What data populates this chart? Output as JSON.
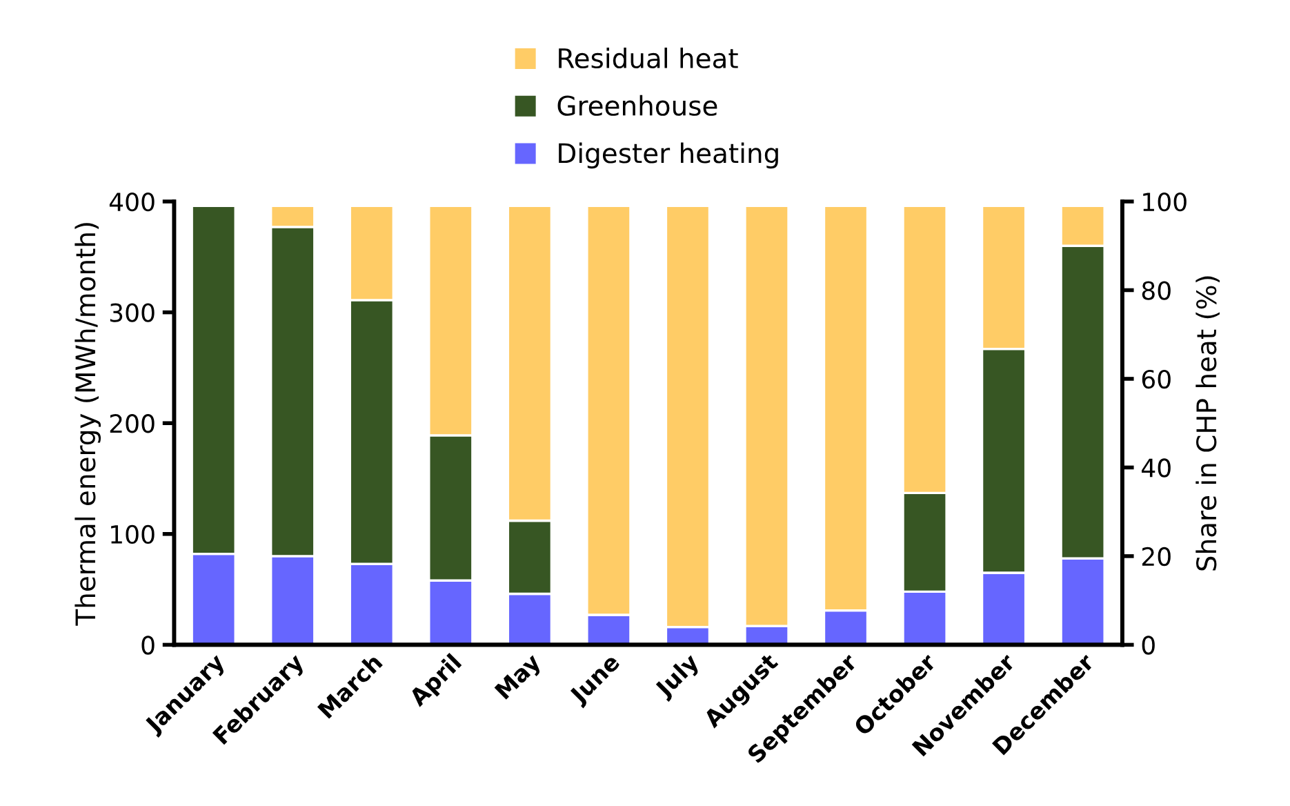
{
  "chart_data": {
    "type": "bar",
    "stacked": true,
    "categories": [
      "January",
      "February",
      "March",
      "April",
      "May",
      "June",
      "July",
      "August",
      "September",
      "October",
      "November",
      "December"
    ],
    "series": [
      {
        "name": "Digester heating",
        "color": "#6666ff",
        "values": [
          82,
          80,
          73,
          58,
          46,
          27,
          16,
          17,
          31,
          48,
          65,
          78
        ]
      },
      {
        "name": "Greenhouse",
        "color": "#375623",
        "values": [
          314,
          297,
          238,
          131,
          66,
          null,
          null,
          null,
          null,
          89,
          202,
          282
        ]
      },
      {
        "name": "Residual heat",
        "color": "#ffcc66",
        "values": [
          null,
          19,
          85,
          207,
          284,
          369,
          380,
          379,
          365,
          259,
          129,
          36
        ]
      }
    ],
    "ylabel": "Thermal energy (MWh/month)",
    "ylim": [
      0,
      400
    ],
    "yticks": [
      0,
      100,
      200,
      300,
      400
    ],
    "y2label": "Share in CHP heat (%)",
    "y2lim": [
      0,
      100
    ],
    "y2ticks": [
      0,
      20,
      40,
      60,
      80,
      100
    ],
    "legend": "top",
    "grid": false
  }
}
